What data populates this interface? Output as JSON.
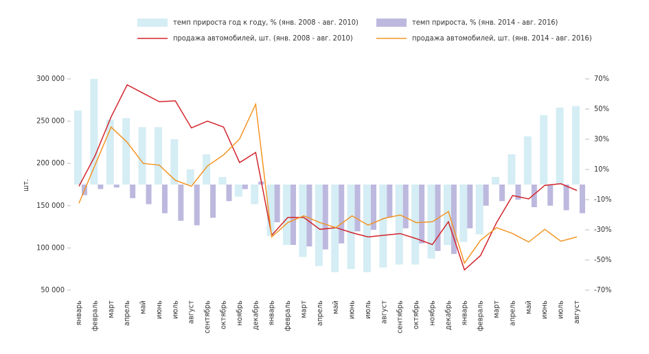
{
  "chart_data": {
    "type": "bar-line",
    "y_label": "шт.",
    "categories": [
      "январь",
      "февраль",
      "март",
      "апрель",
      "май",
      "июнь",
      "июль",
      "август",
      "сентябрь",
      "октябрь",
      "ноябрь",
      "декабрь",
      "январь",
      "февраль",
      "март",
      "апрель",
      "май",
      "июнь",
      "июль",
      "август",
      "сентябрь",
      "октябрь",
      "ноябрь",
      "декабрь",
      "январь",
      "февраль",
      "март",
      "апрель",
      "май",
      "июнь",
      "июль",
      "август"
    ],
    "ylim": [
      50000,
      300000
    ],
    "yticks": [
      {
        "value": 50000,
        "label": "50 000"
      },
      {
        "value": 100000,
        "label": "100 000"
      },
      {
        "value": 150000,
        "label": "150 000"
      },
      {
        "value": 200000,
        "label": "200 000"
      },
      {
        "value": 250000,
        "label": "250 000"
      },
      {
        "value": 300000,
        "label": "300 000"
      }
    ],
    "y2lim": [
      -70,
      70
    ],
    "y2ticks": [
      {
        "value": 70,
        "label": "70%"
      },
      {
        "value": 50,
        "label": "50%"
      },
      {
        "value": 30,
        "label": "30%"
      },
      {
        "value": 10,
        "label": "10%"
      },
      {
        "value": -10,
        "label": "-10%"
      },
      {
        "value": -30,
        "label": "-30%"
      },
      {
        "value": -50,
        "label": "-50%"
      },
      {
        "value": -70,
        "label": "-70%"
      }
    ],
    "series": [
      {
        "name": "темп прироста год к году, % (янв. 2008 - авг. 2010)",
        "type": "bar",
        "axis": "y2",
        "color": "#d5edf4",
        "values": [
          49,
          70,
          43,
          44,
          38,
          38,
          30,
          10,
          20,
          5,
          -8,
          -13,
          -34,
          -40,
          -48,
          -54,
          -58,
          -56,
          -58,
          -55,
          -53,
          -53,
          -49,
          -40,
          -38,
          -33,
          5,
          20,
          32,
          46,
          51,
          52
        ]
      },
      {
        "name": "темп прироста, % (янв. 2014 - авг. 2016)",
        "type": "bar",
        "axis": "y2",
        "color": "#bcb8de",
        "values": [
          -7,
          -3,
          -2,
          -9,
          -13,
          -19,
          -24,
          -27,
          -22,
          -11,
          -3,
          2,
          -25,
          -40,
          -41,
          -43,
          -39,
          -31,
          -30,
          -22,
          -29,
          -39,
          -44,
          -46,
          -29,
          -14,
          -11,
          -10,
          -15,
          -14,
          -17,
          -19
        ]
      },
      {
        "name": "продажа автомобилей, шт. (янв. 2008 - авг. 2010)",
        "type": "line",
        "color": "#d2232a",
        "values": [
          173000,
          209000,
          255000,
          293000,
          283000,
          273000,
          274000,
          242000,
          250000,
          243000,
          201000,
          213000,
          115000,
          136000,
          136000,
          122000,
          124000,
          118000,
          113000,
          115000,
          117000,
          111000,
          104000,
          131000,
          74000,
          91000,
          130000,
          162000,
          158000,
          174000,
          176000,
          168000
        ]
      },
      {
        "name": "продажа автомобилей, шт. (янв. 2014 - авг. 2016)",
        "type": "line",
        "color": "#f39422",
        "values": [
          153000,
          198000,
          243000,
          225000,
          200000,
          198000,
          180000,
          173000,
          197000,
          210000,
          229000,
          270000,
          113000,
          130000,
          138000,
          130000,
          124000,
          138000,
          127000,
          135000,
          139000,
          130000,
          131000,
          143000,
          82000,
          109000,
          124000,
          117000,
          107000,
          122000,
          108000,
          113000
        ]
      }
    ]
  }
}
